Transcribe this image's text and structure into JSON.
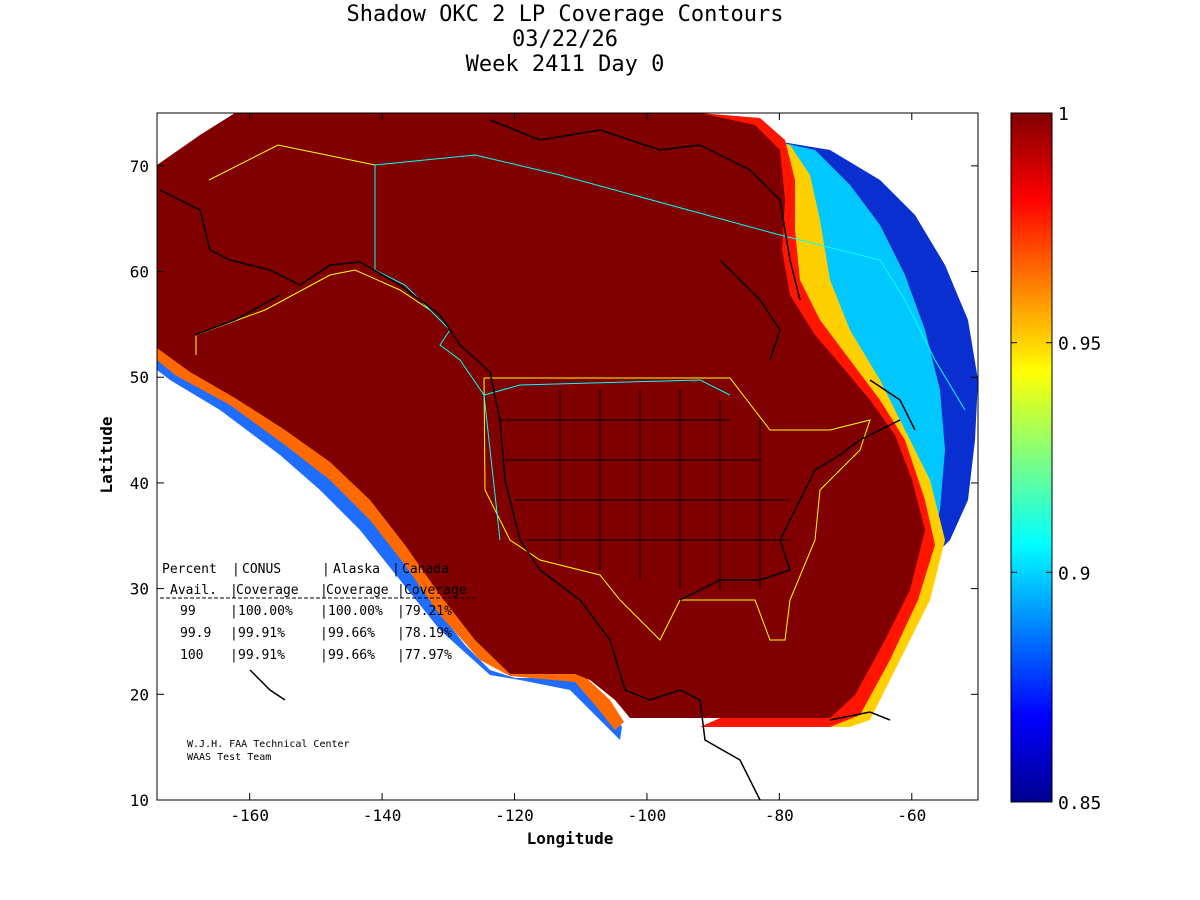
{
  "title": {
    "line1": "Shadow OKC 2 LP Coverage Contours",
    "line2": "03/22/26",
    "line3": "Week 2411 Day 0"
  },
  "axes": {
    "xlabel": "Longitude",
    "ylabel": "Latitude",
    "xlim": [
      -174,
      -50
    ],
    "ylim": [
      10,
      75
    ],
    "xticks": [
      -160,
      -140,
      -120,
      -100,
      -80,
      -60
    ],
    "yticks": [
      10,
      20,
      30,
      40,
      50,
      60,
      70
    ]
  },
  "colorbar": {
    "min": 0.85,
    "max": 1,
    "ticks": [
      "1",
      "0.95",
      "0.9",
      "0.85"
    ],
    "colormap": "jet"
  },
  "coverage_table": {
    "header1": [
      "Percent",
      "CONUS",
      "Alaska",
      "Canada"
    ],
    "header2": [
      "Avail.",
      "Coverage",
      "Coverage",
      "Coverage"
    ],
    "rows": [
      [
        "99",
        "100.00%",
        "100.00%",
        "79.21%"
      ],
      [
        "99.9",
        "99.91%",
        "99.66%",
        "78.19%"
      ],
      [
        "100",
        "99.91%",
        "99.66%",
        "77.97%"
      ]
    ]
  },
  "credits": {
    "line1": "W.J.H. FAA Technical Center",
    "line2": "WAAS Test Team"
  },
  "colors": {
    "full_coverage": "#800000",
    "boundary_yellow": "#ffff00",
    "boundary_cyan": "#00ffff"
  }
}
